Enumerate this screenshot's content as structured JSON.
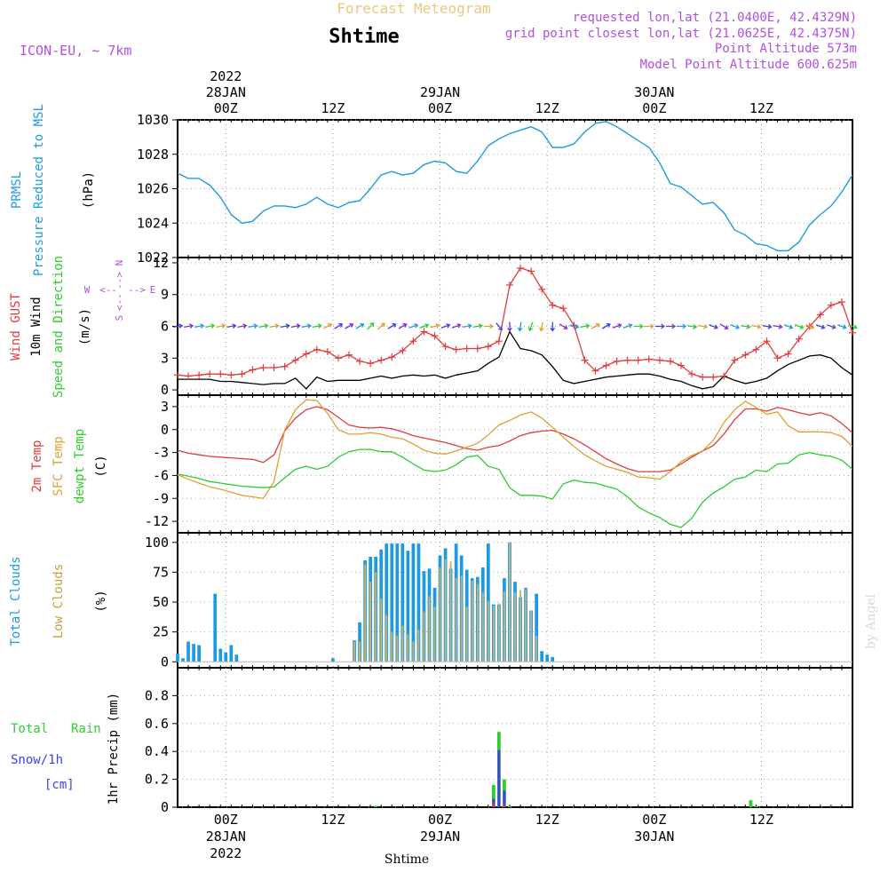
{
  "header": {
    "product": "Forecast Meteogram",
    "location": "Shtime",
    "model": "ICON-EU, ~ 7km",
    "requested": "requested lon,lat (21.0400E, 42.4329N)",
    "gridpoint": "grid point closest lon,lat (21.0625E, 42.4375N)",
    "point_alt": "Point Altitude 573m",
    "model_alt": "Model Point Altitude 600.625m",
    "footer": "Shtime",
    "watermark": "by Angel"
  },
  "time_axis": {
    "range_hours": [
      -9,
      117
    ],
    "major_ticks": [
      {
        "h": 0,
        "label": "00Z",
        "date": "28JAN",
        "year": "2022"
      },
      {
        "h": 20,
        "label": "12Z",
        "date": "",
        "year": ""
      },
      {
        "h": 40,
        "label": "00Z",
        "date": "29JAN",
        "year": ""
      },
      {
        "h": 60,
        "label": "12Z",
        "date": "",
        "year": ""
      },
      {
        "h": 80,
        "label": "00Z",
        "date": "30JAN",
        "year": ""
      },
      {
        "h": 100,
        "label": "12Z",
        "date": "",
        "year": ""
      }
    ]
  },
  "colors": {
    "cyan": "#1e9be0",
    "red": "#e03c3c",
    "orange": "#e0a030",
    "green": "#2ecc2e",
    "purple": "#b050e0",
    "black": "#000000",
    "tan": "#c8b070",
    "blue": "#4040e0"
  },
  "chart_data": [
    {
      "panel": "pressure",
      "type": "line",
      "labels": [
        "PRMSL",
        "Pressure Reduced to MSL",
        "(hPa)"
      ],
      "ylim": [
        1022,
        1030
      ],
      "yticks": [
        "1022",
        "1024",
        "1026",
        "1028",
        "1030"
      ],
      "x": [
        -9,
        -7,
        -5,
        -3,
        -1,
        1,
        3,
        5,
        7,
        9,
        11,
        13,
        15,
        17,
        19,
        21,
        23,
        25,
        27,
        29,
        31,
        33,
        35,
        37,
        39,
        41,
        43,
        45,
        47,
        49,
        51,
        53,
        55,
        57,
        59,
        61,
        63,
        65,
        67,
        69,
        71,
        73,
        75,
        77,
        79,
        81,
        83,
        85,
        87,
        89,
        91,
        93,
        95,
        97,
        99,
        101,
        103,
        105,
        107,
        109,
        111,
        113,
        115,
        117
      ],
      "values": [
        1026.9,
        1026.6,
        1026.6,
        1026.2,
        1025.5,
        1024.5,
        1024.0,
        1024.1,
        1024.7,
        1025.0,
        1025.0,
        1024.9,
        1025.1,
        1025.5,
        1025.1,
        1024.9,
        1025.2,
        1025.3,
        1026.0,
        1026.8,
        1027.0,
        1026.8,
        1026.9,
        1027.4,
        1027.6,
        1027.5,
        1027.0,
        1026.9,
        1027.6,
        1028.5,
        1028.9,
        1029.2,
        1029.4,
        1029.6,
        1029.3,
        1028.4,
        1028.4,
        1028.6,
        1029.3,
        1029.8,
        1029.9,
        1029.6,
        1029.2,
        1028.8,
        1028.4,
        1027.5,
        1026.3,
        1026.1,
        1025.6,
        1025.1,
        1025.2,
        1024.6,
        1023.6,
        1023.3,
        1022.8,
        1022.7,
        1022.4,
        1022.4,
        1022.9,
        1023.9,
        1024.5,
        1025.0,
        1025.8,
        1026.8
      ]
    },
    {
      "panel": "wind",
      "type": "line",
      "labels": [
        "Wind GUST",
        "10m Wind",
        "Speed and Direction",
        "(m/s)"
      ],
      "compass": [
        "N",
        "S",
        "W",
        "E",
        "<--",
        "-->"
      ],
      "ylim": [
        -0.5,
        12.5
      ],
      "yticks": [
        "0",
        "3",
        "6",
        "9",
        "12"
      ],
      "x": [
        -9,
        -7,
        -5,
        -3,
        -1,
        1,
        3,
        5,
        7,
        9,
        11,
        13,
        15,
        17,
        19,
        21,
        23,
        25,
        27,
        29,
        31,
        33,
        35,
        37,
        39,
        41,
        43,
        45,
        47,
        49,
        51,
        53,
        55,
        57,
        59,
        61,
        63,
        65,
        67,
        69,
        71,
        73,
        75,
        77,
        79,
        81,
        83,
        85,
        87,
        89,
        91,
        93,
        95,
        97,
        99,
        101,
        103,
        105,
        107,
        109,
        111,
        113,
        115,
        117
      ],
      "gust": [
        1.4,
        1.3,
        1.4,
        1.5,
        1.5,
        1.4,
        1.5,
        1.9,
        2.1,
        2.1,
        2.2,
        2.8,
        3.4,
        3.8,
        3.6,
        3.0,
        3.3,
        2.7,
        2.5,
        2.8,
        3.1,
        3.7,
        4.6,
        5.5,
        5.1,
        4.1,
        3.8,
        3.9,
        3.9,
        4.1,
        4.6,
        9.9,
        11.5,
        11.2,
        9.5,
        8.0,
        7.7,
        6.1,
        2.8,
        1.8,
        2.3,
        2.7,
        2.8,
        2.8,
        2.9,
        2.8,
        2.7,
        2.3,
        1.5,
        1.2,
        1.2,
        1.3,
        2.8,
        3.3,
        3.8,
        4.6,
        3.0,
        3.4,
        4.8,
        6.0,
        7.1,
        8.0,
        8.3,
        5.4
      ],
      "wind": [
        1.0,
        1.0,
        1.0,
        1.0,
        0.8,
        0.8,
        0.7,
        0.6,
        0.5,
        0.6,
        0.6,
        1.1,
        0.1,
        1.2,
        0.8,
        0.9,
        0.9,
        0.9,
        1.1,
        1.3,
        1.1,
        1.3,
        1.4,
        1.3,
        1.4,
        1.1,
        1.4,
        1.6,
        1.8,
        2.5,
        3.1,
        5.5,
        3.9,
        3.7,
        3.3,
        2.2,
        0.9,
        0.6,
        0.8,
        1.0,
        1.2,
        1.3,
        1.4,
        1.5,
        1.5,
        1.3,
        1.0,
        0.8,
        0.4,
        0.1,
        0.3,
        1.3,
        0.9,
        0.6,
        0.8,
        1.1,
        1.8,
        2.4,
        2.8,
        3.2,
        3.3,
        3.0,
        2.1,
        1.4
      ]
    },
    {
      "panel": "temperature",
      "type": "line",
      "labels": [
        "2m Temp",
        "SFC Temp",
        "dewpt Temp",
        "(C)"
      ],
      "ylim": [
        -13.5,
        4.5
      ],
      "yticks": [
        "-12",
        "-9",
        "-6",
        "-3",
        "0",
        "3"
      ],
      "x": [
        -9,
        -7,
        -5,
        -3,
        -1,
        1,
        3,
        5,
        7,
        9,
        11,
        13,
        15,
        17,
        19,
        21,
        23,
        25,
        27,
        29,
        31,
        33,
        35,
        37,
        39,
        41,
        43,
        45,
        47,
        49,
        51,
        53,
        55,
        57,
        59,
        61,
        63,
        65,
        67,
        69,
        71,
        73,
        75,
        77,
        79,
        81,
        83,
        85,
        87,
        89,
        91,
        93,
        95,
        97,
        99,
        101,
        103,
        105,
        107,
        109,
        111,
        113,
        115,
        117
      ],
      "temp2m": [
        -2.7,
        -3.1,
        -3.3,
        -3.5,
        -3.6,
        -3.7,
        -3.8,
        -3.9,
        -4.3,
        -3.3,
        -0.2,
        1.5,
        2.6,
        3.0,
        2.6,
        1.6,
        0.6,
        0.3,
        0.2,
        0.3,
        0.1,
        -0.3,
        -0.8,
        -1.1,
        -1.4,
        -1.7,
        -2.1,
        -2.5,
        -2.7,
        -2.3,
        -2.1,
        -1.5,
        -0.8,
        -0.4,
        -0.2,
        -0.1,
        -0.6,
        -1.2,
        -2.0,
        -2.9,
        -3.8,
        -4.5,
        -5.1,
        -5.5,
        -5.5,
        -5.5,
        -5.3,
        -4.5,
        -3.6,
        -2.8,
        -2.1,
        -0.6,
        1.3,
        2.7,
        2.7,
        2.4,
        2.9,
        2.6,
        2.2,
        1.9,
        2.2,
        1.8,
        0.8,
        -0.4
      ],
      "sfctemp": [
        -5.9,
        -6.5,
        -7.0,
        -7.5,
        -7.8,
        -8.2,
        -8.6,
        -8.8,
        -9.0,
        -6.8,
        -0.1,
        2.6,
        3.9,
        3.8,
        2.1,
        0.0,
        -0.6,
        -0.6,
        -0.4,
        -0.6,
        -1.0,
        -1.2,
        -1.9,
        -2.7,
        -3.1,
        -3.2,
        -2.8,
        -2.3,
        -1.8,
        -0.7,
        0.6,
        1.2,
        1.9,
        2.3,
        1.5,
        0.3,
        -1.0,
        -2.2,
        -3.3,
        -4.1,
        -4.8,
        -5.2,
        -5.6,
        -6.2,
        -6.3,
        -6.5,
        -5.5,
        -4.2,
        -3.4,
        -2.8,
        -1.4,
        0.9,
        2.6,
        3.7,
        2.9,
        2.0,
        2.3,
        0.5,
        -0.3,
        -0.3,
        -0.3,
        -0.4,
        -0.9,
        -2.2
      ],
      "dewpt": [
        -5.8,
        -6.1,
        -6.4,
        -6.8,
        -7.0,
        -7.2,
        -7.4,
        -7.5,
        -7.6,
        -7.5,
        -6.3,
        -5.2,
        -4.8,
        -5.2,
        -4.8,
        -3.6,
        -2.9,
        -2.6,
        -2.6,
        -2.9,
        -2.9,
        -3.6,
        -4.5,
        -5.3,
        -5.5,
        -5.3,
        -4.6,
        -3.6,
        -3.4,
        -4.8,
        -5.2,
        -7.6,
        -8.6,
        -8.6,
        -8.7,
        -9.1,
        -7.1,
        -6.6,
        -6.9,
        -7.0,
        -7.4,
        -7.8,
        -8.8,
        -10.1,
        -10.9,
        -11.5,
        -12.4,
        -12.8,
        -11.6,
        -9.5,
        -8.3,
        -7.5,
        -6.5,
        -6.2,
        -5.3,
        -5.5,
        -4.5,
        -4.4,
        -3.3,
        -3.0,
        -3.3,
        -3.5,
        -4.0,
        -5.2
      ]
    },
    {
      "panel": "clouds",
      "type": "bar",
      "labels": [
        "Total Clouds",
        "Low Clouds",
        "(%)"
      ],
      "ylim": [
        -5,
        108
      ],
      "yticks": [
        "0",
        "25",
        "50",
        "75",
        "100"
      ],
      "x": [
        -9,
        -8,
        -7,
        -6,
        -5,
        -4,
        -3,
        -2,
        -1,
        0,
        1,
        2,
        3,
        4,
        5,
        6,
        7,
        8,
        9,
        10,
        11,
        12,
        13,
        14,
        15,
        16,
        17,
        18,
        19,
        20,
        21,
        22,
        23,
        24,
        25,
        26,
        27,
        28,
        29,
        30,
        31,
        32,
        33,
        34,
        35,
        36,
        37,
        38,
        39,
        40,
        41,
        42,
        43,
        44,
        45,
        46,
        47,
        48,
        49,
        50,
        51,
        52,
        53,
        54,
        55,
        56,
        57,
        58,
        59,
        60,
        61,
        62,
        63,
        64,
        65,
        66,
        67,
        68,
        69,
        70,
        71,
        72,
        73,
        74,
        75,
        76,
        77,
        78,
        79,
        80,
        81,
        82,
        83,
        84,
        85,
        86,
        87,
        88,
        89,
        90,
        91,
        92,
        93,
        94,
        95,
        96,
        97,
        98,
        99,
        100,
        101,
        102,
        103,
        104,
        105,
        106,
        107,
        108,
        109,
        110,
        111,
        112,
        113,
        114,
        115,
        116,
        117
      ],
      "total": [
        7,
        3,
        17,
        15,
        14,
        0,
        0,
        57,
        11,
        8,
        14,
        6,
        0,
        0,
        0,
        0,
        0,
        0,
        0,
        0,
        0,
        0,
        0,
        0,
        0,
        0,
        0,
        0,
        0,
        3,
        0,
        0,
        0,
        18,
        33,
        85,
        88,
        88,
        94,
        99,
        99,
        99,
        99,
        93,
        99,
        99,
        76,
        78,
        62,
        89,
        95,
        78,
        99,
        89,
        77,
        70,
        71,
        79,
        99,
        48,
        48,
        70,
        100,
        67,
        54,
        62,
        43,
        57,
        9,
        6,
        4,
        0,
        0,
        0,
        0,
        0,
        0,
        0,
        0,
        0,
        0,
        0,
        0,
        0,
        0,
        0,
        0,
        0,
        0,
        0,
        0,
        0,
        0,
        0,
        0,
        0,
        0,
        0,
        0,
        0,
        0,
        0,
        0,
        0,
        0,
        0,
        0,
        0,
        0,
        0,
        0,
        0,
        0,
        0,
        0,
        0,
        0,
        0,
        0,
        0,
        0,
        0,
        0,
        0,
        0,
        0,
        0
      ],
      "low": [
        0,
        0,
        0,
        0,
        0,
        0,
        0,
        0,
        0,
        0,
        0,
        0,
        0,
        0,
        0,
        0,
        0,
        0,
        0,
        0,
        0,
        0,
        0,
        0,
        0,
        0,
        0,
        0,
        0,
        0,
        0,
        0,
        0,
        17,
        17,
        81,
        67,
        75,
        53,
        39,
        25,
        22,
        30,
        23,
        17,
        27,
        42,
        55,
        46,
        79,
        86,
        84,
        70,
        72,
        46,
        68,
        65,
        58,
        51,
        47,
        49,
        59,
        100,
        58,
        60,
        61,
        43,
        22,
        0,
        0,
        0,
        0,
        0,
        0,
        0,
        0,
        0,
        0,
        0,
        0,
        0,
        0,
        0,
        0,
        0,
        0,
        0,
        0,
        0,
        0,
        0,
        0,
        0,
        0,
        0,
        0,
        0,
        0,
        0,
        0,
        0,
        0,
        0,
        0,
        0,
        0,
        0,
        0,
        0,
        0,
        0,
        0,
        0,
        0,
        0,
        0,
        0,
        0,
        0,
        0,
        0,
        0,
        0,
        0,
        0,
        0,
        0
      ]
    },
    {
      "panel": "precip",
      "type": "bar",
      "labels": [
        "Total",
        "Rain",
        "Snow/1h",
        "[cm]",
        "1hr Precip (mm)"
      ],
      "ylim": [
        0,
        1.0
      ],
      "yticks": [
        "0",
        "0.2",
        "0.4",
        "0.6",
        "0.8"
      ],
      "x": [
        28,
        50,
        51,
        52,
        53,
        98,
        99
      ],
      "total": [
        0.01,
        0.16,
        0.54,
        0.2,
        0.01,
        0.05,
        0.01
      ],
      "snow": [
        0.0,
        0.06,
        0.41,
        0.12,
        0.0,
        0.0,
        0.0
      ],
      "red_rain": [
        0.0,
        0.03,
        0.0,
        0.03,
        0.0,
        0.0,
        0.0
      ]
    }
  ],
  "wind_direction_arrows": {
    "description": "10m wind direction arrows along 6 m/s line",
    "x": [
      -9,
      -7,
      -5,
      -3,
      -1,
      1,
      3,
      5,
      7,
      9,
      11,
      13,
      15,
      17,
      19,
      21,
      23,
      25,
      27,
      29,
      31,
      33,
      35,
      37,
      39,
      41,
      43,
      45,
      47,
      49,
      51,
      53,
      55,
      57,
      59,
      61,
      63,
      65,
      67,
      69,
      71,
      73,
      75,
      77,
      79,
      81,
      83,
      85,
      87,
      89,
      91,
      93,
      95,
      97,
      99,
      101,
      103,
      105,
      107,
      109,
      111,
      113,
      115,
      117
    ],
    "to_deg": [
      80,
      80,
      80,
      80,
      80,
      80,
      80,
      80,
      80,
      80,
      80,
      80,
      80,
      80,
      60,
      60,
      60,
      60,
      45,
      50,
      60,
      60,
      70,
      70,
      75,
      70,
      70,
      80,
      80,
      90,
      140,
      180,
      190,
      200,
      190,
      180,
      120,
      100,
      80,
      60,
      60,
      70,
      70,
      90,
      90,
      90,
      90,
      90,
      100,
      100,
      110,
      120,
      110,
      100,
      100,
      100,
      100,
      110,
      110,
      110,
      110,
      110,
      110,
      110
    ]
  }
}
